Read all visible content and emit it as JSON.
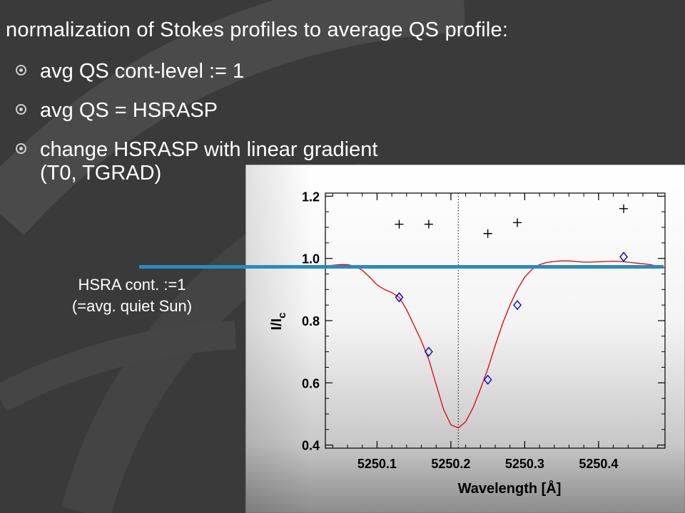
{
  "slide": {
    "title": "normalization of Stokes profiles to average QS profile:",
    "bullets": [
      {
        "line1": "avg QS cont-level := 1",
        "line2": ""
      },
      {
        "line1": "avg QS = HSRASP",
        "line2": ""
      },
      {
        "line1": "change HSRASP with linear gradient",
        "line2": "(T0, TGRAD)"
      }
    ],
    "annotation": {
      "line1": "HSRA cont. :=1",
      "line2": "(=avg. quiet Sun)"
    },
    "line_color": "#2a8bbd"
  },
  "chart_data": {
    "type": "scatter",
    "xlabel": "Wavelength [Å]",
    "ylabel_main": "I/I",
    "ylabel_sub": "c",
    "xlim": [
      5250.03,
      5250.49
    ],
    "ylim": [
      0.39,
      1.21
    ],
    "xticks": [
      "5250.1",
      "5250.2",
      "5250.3",
      "5250.4"
    ],
    "yticks": [
      "1.2",
      "1.0",
      "0.8",
      "0.6",
      "0.4"
    ],
    "vline_x": 5250.21,
    "series": [
      {
        "marker": "plus",
        "color": "#000000",
        "x": [
          5250.13,
          5250.17,
          5250.25,
          5250.29,
          5250.434
        ],
        "y": [
          1.11,
          1.11,
          1.08,
          1.115,
          1.16
        ]
      },
      {
        "marker": "diamond",
        "color": "#0000cc",
        "x": [
          5250.13,
          5250.17,
          5250.25,
          5250.29,
          5250.434
        ],
        "y": [
          0.875,
          0.7,
          0.61,
          0.85,
          1.005
        ]
      }
    ],
    "fit_curve": {
      "color": "#e00000",
      "x": [
        5250.03,
        5250.04,
        5250.05,
        5250.06,
        5250.07,
        5250.08,
        5250.09,
        5250.1,
        5250.11,
        5250.12,
        5250.13,
        5250.14,
        5250.15,
        5250.16,
        5250.17,
        5250.18,
        5250.19,
        5250.2,
        5250.21,
        5250.22,
        5250.23,
        5250.24,
        5250.25,
        5250.26,
        5250.27,
        5250.28,
        5250.29,
        5250.3,
        5250.31,
        5250.32,
        5250.33,
        5250.34,
        5250.35,
        5250.36,
        5250.37,
        5250.38,
        5250.39,
        5250.4,
        5250.41,
        5250.42,
        5250.43,
        5250.44,
        5250.45,
        5250.46,
        5250.47,
        5250.48,
        5250.49
      ],
      "y": [
        0.975,
        0.978,
        0.98,
        0.98,
        0.975,
        0.962,
        0.94,
        0.915,
        0.9,
        0.89,
        0.875,
        0.835,
        0.785,
        0.735,
        0.675,
        0.595,
        0.515,
        0.465,
        0.455,
        0.475,
        0.52,
        0.58,
        0.645,
        0.72,
        0.79,
        0.85,
        0.9,
        0.94,
        0.965,
        0.98,
        0.987,
        0.99,
        0.992,
        0.992,
        0.99,
        0.988,
        0.988,
        0.989,
        0.99,
        0.991,
        0.99,
        0.988,
        0.985,
        0.983,
        0.98,
        0.975,
        0.97
      ]
    }
  }
}
